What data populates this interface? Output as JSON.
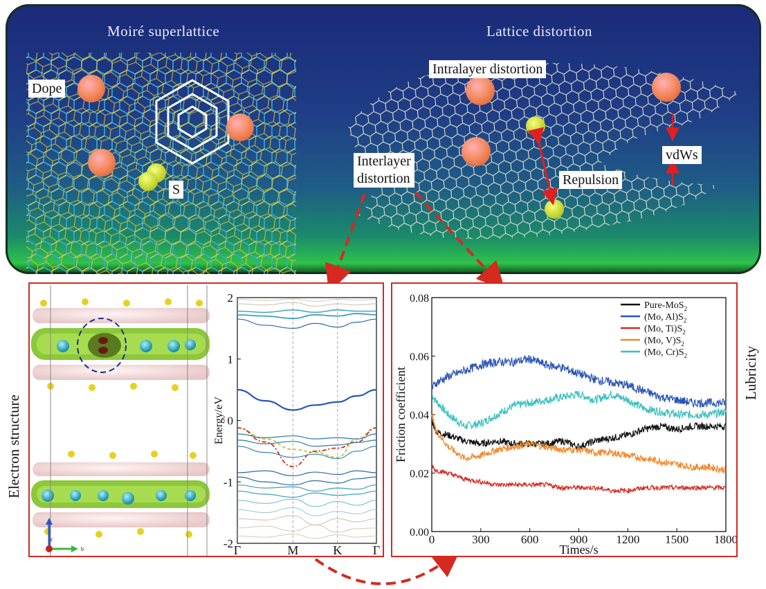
{
  "top": {
    "left_title": "Moiré superlattice",
    "right_title": "Lattice distortion",
    "labels": {
      "dope": "Dope",
      "s": "S",
      "intralayer": "Intralayer distortion",
      "interlayer_1": "Interlayer",
      "interlayer_2": "distortion",
      "repulsion": "Repulsion",
      "vdws": "vdWs"
    }
  },
  "electron_label": "Electron structure",
  "lubricity_label": "Lubricity",
  "crystal": {
    "axis_c": "c",
    "axis_b": "b"
  },
  "colors": {
    "frame_red": "#d42a20",
    "dope_atom": "#f28a5a",
    "s_atom": "#c8d820",
    "lattice_blue": "#3aa8d8",
    "lattice_yellow": "#d8c840"
  },
  "band_chart": {
    "type": "line",
    "ylabel": "Energy/eV",
    "ylim": [
      -2,
      2
    ],
    "yticks": [
      "2",
      "1",
      "0",
      "-1",
      "-2"
    ],
    "kpoints": [
      "Γ",
      "M",
      "K",
      "Γ"
    ],
    "kpos": [
      0,
      0.4,
      0.72,
      1
    ],
    "bands": [
      {
        "k": [
          0,
          0.2,
          0.4,
          0.56,
          0.72,
          0.86,
          1
        ],
        "e": [
          0.5,
          0.32,
          0.17,
          0.25,
          0.3,
          0.4,
          0.5
        ],
        "color": "#2a55b8",
        "width": 2.2
      },
      {
        "k": [
          0,
          0.2,
          0.4,
          0.56,
          0.72,
          0.86,
          1
        ],
        "e": [
          -0.12,
          -0.3,
          -0.47,
          -0.52,
          -0.6,
          -0.3,
          -0.12
        ],
        "color": "#b8c83a",
        "width": 1.8,
        "dash": "5,3"
      },
      {
        "k": [
          0,
          0.2,
          0.4,
          0.56,
          0.72,
          0.86,
          1
        ],
        "e": [
          -0.12,
          -0.35,
          -0.75,
          -0.5,
          -0.45,
          -0.35,
          -0.12
        ],
        "color": "#d42a20",
        "width": 1.8,
        "dash": "6,3,2,3"
      },
      {
        "k": [
          0,
          0.2,
          0.4,
          0.56,
          0.72,
          0.86,
          1
        ],
        "e": [
          -0.22,
          -0.28,
          -0.25,
          -0.3,
          -0.28,
          -0.3,
          -0.22
        ],
        "color": "#2f78a8",
        "width": 1.2
      },
      {
        "k": [
          0,
          0.2,
          0.4,
          0.56,
          0.72,
          0.86,
          1
        ],
        "e": [
          -0.32,
          -0.38,
          -0.34,
          -0.42,
          -0.4,
          -0.36,
          -0.32
        ],
        "color": "#2f78a8",
        "width": 1.2
      },
      {
        "k": [
          0,
          0.2,
          0.4,
          0.56,
          0.72,
          0.86,
          1
        ],
        "e": [
          -0.42,
          -0.52,
          -0.6,
          -0.55,
          -0.62,
          -0.5,
          -0.42
        ],
        "color": "#3a8ab0",
        "width": 1.2
      },
      {
        "k": [
          0,
          0.2,
          0.4,
          0.56,
          0.72,
          0.86,
          1
        ],
        "e": [
          -0.85,
          -0.82,
          -0.9,
          -0.84,
          -0.88,
          -0.82,
          -0.85
        ],
        "color": "#2f6aa8",
        "width": 1.2
      },
      {
        "k": [
          0,
          0.2,
          0.4,
          0.56,
          0.72,
          0.86,
          1
        ],
        "e": [
          -0.92,
          -1.0,
          -1.05,
          -0.98,
          -1.02,
          -0.95,
          -0.92
        ],
        "color": "#2f6aa8",
        "width": 1.2
      },
      {
        "k": [
          0,
          0.2,
          0.4,
          0.56,
          0.72,
          0.86,
          1
        ],
        "e": [
          -1.05,
          -1.1,
          -1.08,
          -1.15,
          -1.1,
          -1.12,
          -1.05
        ],
        "color": "#38a0b8",
        "width": 1.2
      },
      {
        "k": [
          0,
          0.2,
          0.4,
          0.56,
          0.72,
          0.86,
          1
        ],
        "e": [
          -1.15,
          -1.2,
          -1.25,
          -1.18,
          -1.22,
          -1.2,
          -1.15
        ],
        "color": "#38a0b8",
        "width": 1.2
      },
      {
        "k": [
          0,
          0.2,
          0.4,
          0.56,
          0.72,
          0.86,
          1
        ],
        "e": [
          -1.3,
          -1.35,
          -1.28,
          -1.4,
          -1.32,
          -1.38,
          -1.3
        ],
        "color": "#6ab8c8",
        "width": 1
      },
      {
        "k": [
          0,
          0.2,
          0.4,
          0.56,
          0.72,
          0.86,
          1
        ],
        "e": [
          -1.45,
          -1.5,
          -1.42,
          -1.55,
          -1.48,
          -1.52,
          -1.45
        ],
        "color": "#9ac8c8",
        "width": 1
      },
      {
        "k": [
          0,
          0.2,
          0.4,
          0.56,
          0.72,
          0.86,
          1
        ],
        "e": [
          -1.6,
          -1.62,
          -1.55,
          -1.7,
          -1.6,
          -1.65,
          -1.6
        ],
        "color": "#c8c0a8",
        "width": 1
      },
      {
        "k": [
          0,
          0.2,
          0.4,
          0.56,
          0.72,
          0.86,
          1
        ],
        "e": [
          -1.75,
          -1.72,
          -1.8,
          -1.7,
          -1.82,
          -1.76,
          -1.75
        ],
        "color": "#d8c8b0",
        "width": 1
      },
      {
        "k": [
          0,
          0.2,
          0.4,
          0.56,
          0.72,
          0.86,
          1
        ],
        "e": [
          -1.88,
          -1.9,
          -1.85,
          -1.92,
          -1.86,
          -1.9,
          -1.88
        ],
        "color": "#d8c8b0",
        "width": 1
      },
      {
        "k": [
          0,
          0.2,
          0.4,
          0.56,
          0.72,
          0.86,
          1
        ],
        "e": [
          1.65,
          1.55,
          1.5,
          1.58,
          1.52,
          1.6,
          1.65
        ],
        "color": "#2f6aa8",
        "width": 1.2
      },
      {
        "k": [
          0,
          0.2,
          0.4,
          0.56,
          0.72,
          0.86,
          1
        ],
        "e": [
          1.72,
          1.7,
          1.66,
          1.72,
          1.7,
          1.74,
          1.72
        ],
        "color": "#38a0b8",
        "width": 1.8
      },
      {
        "k": [
          0,
          0.2,
          0.4,
          0.56,
          0.72,
          0.86,
          1
        ],
        "e": [
          1.78,
          1.76,
          1.8,
          1.76,
          1.8,
          1.78,
          1.78
        ],
        "color": "#38a0b8",
        "width": 1.4
      },
      {
        "k": [
          0,
          0.2,
          0.4,
          0.56,
          0.72,
          0.86,
          1
        ],
        "e": [
          1.9,
          1.88,
          1.92,
          1.86,
          1.9,
          1.88,
          1.9
        ],
        "color": "#c8c0a8",
        "width": 1
      },
      {
        "k": [
          0,
          0.2,
          0.4,
          0.56,
          0.72,
          0.86,
          1
        ],
        "e": [
          1.97,
          1.95,
          1.98,
          1.94,
          1.97,
          1.96,
          1.97
        ],
        "color": "#d8c8b0",
        "width": 1
      }
    ]
  },
  "friction_chart": {
    "type": "line",
    "xlabel": "Times/s",
    "ylabel": "Friction coefficient",
    "xlim": [
      0,
      1800
    ],
    "ylim": [
      0,
      0.08
    ],
    "xticks": [
      "0",
      "300",
      "600",
      "900",
      "1200",
      "1500",
      "1800"
    ],
    "yticks": [
      "0.00",
      "0.02",
      "0.04",
      "0.06",
      "0.08"
    ],
    "series": [
      {
        "name": "Pure-MoS",
        "sub": "2",
        "color": "#111111",
        "noise": 0.0012,
        "x": [
          0,
          30,
          100,
          200,
          300,
          400,
          500,
          600,
          700,
          800,
          900,
          1000,
          1100,
          1200,
          1300,
          1400,
          1500,
          1600,
          1700,
          1800
        ],
        "y": [
          0.038,
          0.034,
          0.033,
          0.031,
          0.03,
          0.031,
          0.03,
          0.03,
          0.03,
          0.031,
          0.029,
          0.031,
          0.032,
          0.033,
          0.035,
          0.036,
          0.035,
          0.036,
          0.036,
          0.036
        ]
      },
      {
        "name": "(Mo, Al)S",
        "sub": "2",
        "color": "#2a55b8",
        "noise": 0.0015,
        "x": [
          0,
          30,
          100,
          200,
          300,
          400,
          500,
          600,
          700,
          800,
          900,
          1000,
          1100,
          1200,
          1300,
          1400,
          1500,
          1600,
          1700,
          1800
        ],
        "y": [
          0.049,
          0.051,
          0.053,
          0.055,
          0.057,
          0.058,
          0.058,
          0.059,
          0.057,
          0.056,
          0.054,
          0.052,
          0.051,
          0.05,
          0.048,
          0.046,
          0.045,
          0.044,
          0.044,
          0.044
        ]
      },
      {
        "name": "(Mo, Ti)S",
        "sub": "2",
        "color": "#d42a20",
        "noise": 0.0008,
        "x": [
          0,
          20,
          100,
          200,
          300,
          400,
          500,
          600,
          700,
          800,
          900,
          1000,
          1100,
          1200,
          1300,
          1400,
          1500,
          1600,
          1700,
          1800
        ],
        "y": [
          0.023,
          0.021,
          0.02,
          0.018,
          0.017,
          0.016,
          0.016,
          0.016,
          0.016,
          0.015,
          0.015,
          0.015,
          0.014,
          0.014,
          0.015,
          0.015,
          0.015,
          0.015,
          0.015,
          0.015
        ]
      },
      {
        "name": "(Mo, V)S",
        "sub": "2",
        "color": "#f0882a",
        "noise": 0.0012,
        "x": [
          0,
          20,
          100,
          200,
          300,
          400,
          500,
          600,
          700,
          800,
          900,
          1000,
          1100,
          1200,
          1300,
          1400,
          1500,
          1600,
          1700,
          1800
        ],
        "y": [
          0.041,
          0.035,
          0.029,
          0.025,
          0.026,
          0.028,
          0.029,
          0.03,
          0.029,
          0.028,
          0.028,
          0.027,
          0.027,
          0.026,
          0.025,
          0.024,
          0.023,
          0.022,
          0.022,
          0.021
        ]
      },
      {
        "name": "(Mo, Cr)S",
        "sub": "2",
        "color": "#3ac0c0",
        "noise": 0.0014,
        "x": [
          0,
          20,
          100,
          200,
          300,
          400,
          500,
          600,
          700,
          800,
          900,
          1000,
          1100,
          1200,
          1300,
          1400,
          1500,
          1600,
          1700,
          1800
        ],
        "y": [
          0.047,
          0.045,
          0.04,
          0.036,
          0.037,
          0.04,
          0.043,
          0.044,
          0.045,
          0.046,
          0.047,
          0.045,
          0.047,
          0.045,
          0.042,
          0.041,
          0.04,
          0.04,
          0.04,
          0.041
        ]
      }
    ]
  }
}
